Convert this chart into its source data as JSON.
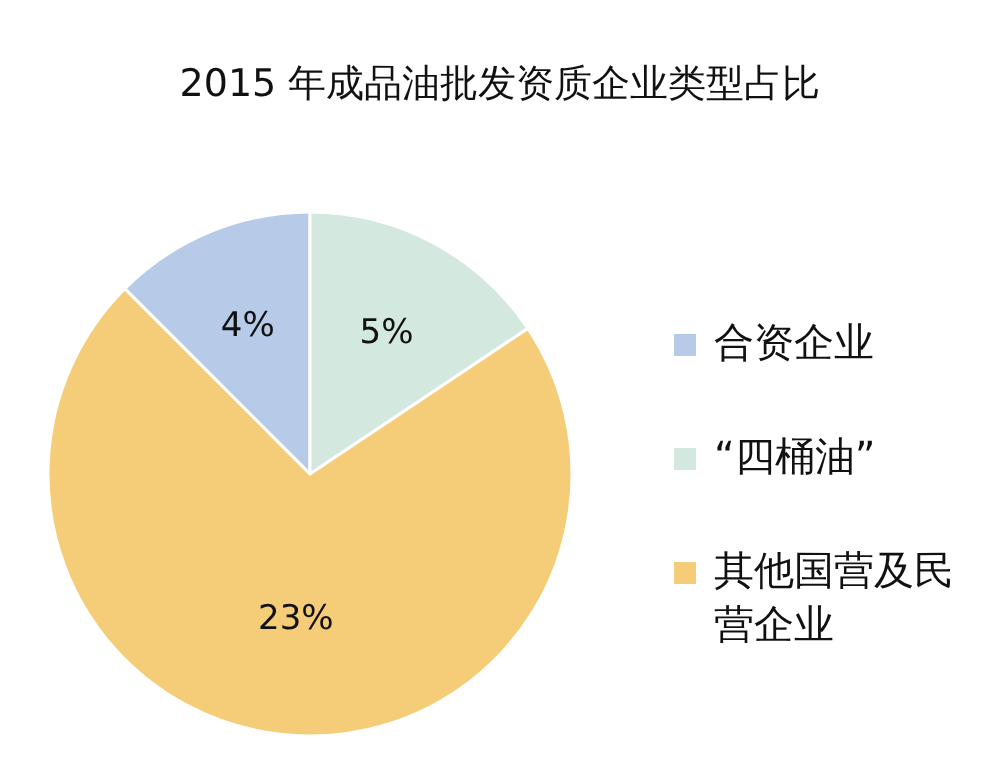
{
  "chart_data": {
    "type": "pie",
    "title": "2015 年成品油批发资质企业类型占比",
    "categories": [
      "合资企业",
      "“四桶油”",
      "其他国营及民营企业"
    ],
    "values": [
      4,
      5,
      23
    ],
    "colors": [
      "#b7cbe8",
      "#d3e8df",
      "#f5cd79"
    ],
    "value_labels": [
      "4%",
      "5%",
      "23%"
    ],
    "legend": "right"
  }
}
